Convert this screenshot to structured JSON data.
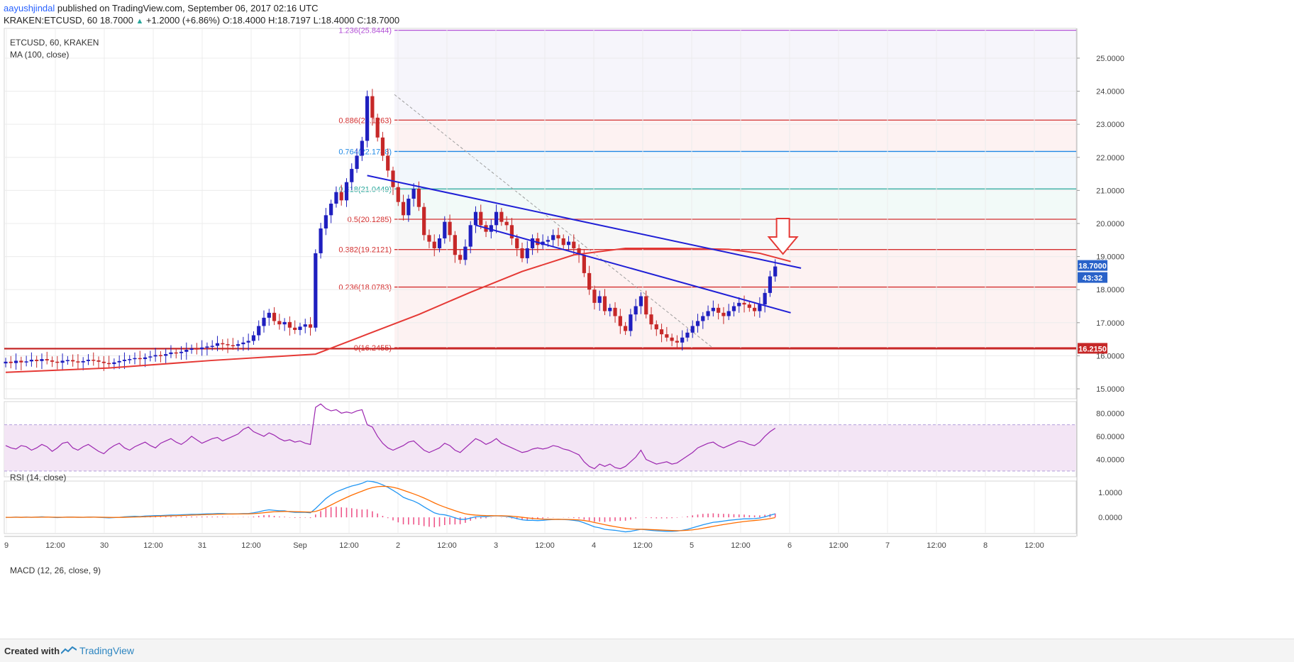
{
  "header": {
    "author": "aayushjindal",
    "published_text": "published on TradingView.com, September 06, 2017 02:16 UTC",
    "symbol_line": "KRAKEN:ETCUSD, 60",
    "last": "18.7000",
    "change": "+1.2000 (+6.86%)",
    "o_label": "O:",
    "o": "18.4000",
    "h_label": "H:",
    "h": "18.7197",
    "l_label": "L:",
    "l": "18.4000",
    "c_label": "C:",
    "c": "18.7000"
  },
  "footer": {
    "created_with": "Created with",
    "brand": "TradingView"
  },
  "colors": {
    "bull": "#1f1fbf",
    "bear": "#c62828",
    "ma": "#e53935",
    "trend": "#1f1fd6",
    "rsi": "#9c27b0",
    "macd": "#2196f3",
    "signal": "#ff6d00",
    "fib_red": "#d32f2f",
    "fib_blue": "#1e88e5",
    "fib_teal": "#26a69a",
    "fib_purple": "#b24fd6",
    "support": "#c62828"
  },
  "chart_data": {
    "type": "candlestick",
    "title": "ETCUSD, 60, KRAKEN",
    "indicator_label": "MA (100, close)",
    "price_axis_ticks": [
      "25.0000",
      "24.0000",
      "23.0000",
      "22.0000",
      "21.0000",
      "20.0000",
      "19.0000",
      "18.0000",
      "17.0000",
      "16.0000",
      "15.0000"
    ],
    "price_range": [
      14.7,
      25.9
    ],
    "last_price_label": "18.7000",
    "countdown_label": "43:32",
    "support_label": "16.2150",
    "support_level": 16.215,
    "time_axis_labels": [
      "9",
      "12:00",
      "30",
      "12:00",
      "31",
      "12:00",
      "Sep",
      "12:00",
      "2",
      "12:00",
      "3",
      "12:00",
      "4",
      "12:00",
      "5",
      "12:00",
      "6",
      "12:00",
      "7",
      "12:00",
      "8",
      "12:00"
    ],
    "fib_levels": [
      {
        "label": "1.236(25.8444)",
        "price": 25.8444,
        "color": "fib_purple"
      },
      {
        "label": "0.886(23.1263)",
        "price": 23.1263,
        "color": "fib_red"
      },
      {
        "label": "0.764(22.1788)",
        "price": 22.1788,
        "color": "fib_blue"
      },
      {
        "label": "0.618(21.0449)",
        "price": 21.0449,
        "color": "fib_teal"
      },
      {
        "label": "0.5(20.1285)",
        "price": 20.1285,
        "color": "fib_red"
      },
      {
        "label": "0.382(19.2121)",
        "price": 19.2121,
        "color": "fib_red"
      },
      {
        "label": "0.236(18.0783)",
        "price": 18.0783,
        "color": "fib_red"
      },
      {
        "label": "0(16.2455)",
        "price": 16.2455,
        "color": "fib_red"
      }
    ],
    "trendlines": [
      {
        "from": {
          "bar": 70,
          "price": 21.45
        },
        "to": {
          "bar": 154,
          "price": 18.65
        }
      },
      {
        "from": {
          "bar": 91,
          "price": 19.95
        },
        "to": {
          "bar": 152,
          "price": 17.3
        }
      }
    ],
    "close_prices": [
      15.82,
      15.78,
      15.85,
      15.8,
      15.83,
      15.88,
      15.84,
      15.9,
      15.86,
      15.82,
      15.79,
      15.85,
      15.87,
      15.83,
      15.8,
      15.84,
      15.88,
      15.86,
      15.82,
      15.78,
      15.75,
      15.8,
      15.84,
      15.88,
      15.9,
      15.93,
      15.9,
      15.95,
      15.98,
      16.02,
      16.0,
      16.05,
      16.1,
      16.08,
      16.12,
      16.18,
      16.22,
      16.2,
      16.25,
      16.28,
      16.3,
      16.38,
      16.35,
      16.32,
      16.3,
      16.35,
      16.4,
      16.45,
      16.62,
      16.9,
      17.15,
      17.3,
      17.05,
      16.95,
      17.02,
      16.85,
      16.78,
      16.88,
      16.95,
      16.85,
      19.1,
      19.85,
      20.25,
      20.6,
      20.95,
      20.7,
      21.25,
      21.65,
      22.05,
      22.5,
      23.85,
      23.2,
      22.6,
      22.05,
      21.6,
      21.1,
      20.65,
      20.25,
      20.75,
      21.05,
      20.5,
      19.65,
      19.45,
      19.25,
      19.55,
      20.05,
      19.65,
      19.05,
      18.9,
      19.3,
      19.95,
      20.35,
      19.95,
      19.75,
      19.95,
      20.35,
      20.05,
      19.95,
      19.55,
      19.25,
      18.95,
      19.25,
      19.55,
      19.35,
      19.45,
      19.5,
      19.65,
      19.55,
      19.35,
      19.45,
      19.25,
      19.05,
      18.5,
      18.0,
      17.6,
      17.8,
      17.35,
      17.45,
      17.2,
      16.9,
      16.75,
      17.25,
      17.5,
      17.8,
      17.25,
      16.95,
      16.8,
      16.65,
      16.55,
      16.45,
      16.4,
      16.55,
      16.7,
      16.9,
      17.05,
      17.2,
      17.35,
      17.45,
      17.3,
      17.2,
      17.35,
      17.5,
      17.6,
      17.55,
      17.45,
      17.35,
      17.55,
      17.9,
      18.4,
      18.7
    ],
    "ma_100": [
      {
        "bar": 0,
        "price": 15.5
      },
      {
        "bar": 20,
        "price": 15.63
      },
      {
        "bar": 40,
        "price": 15.86
      },
      {
        "bar": 60,
        "price": 16.05
      },
      {
        "bar": 70,
        "price": 16.65
      },
      {
        "bar": 80,
        "price": 17.25
      },
      {
        "bar": 90,
        "price": 17.92
      },
      {
        "bar": 100,
        "price": 18.55
      },
      {
        "bar": 110,
        "price": 19.05
      },
      {
        "bar": 120,
        "price": 19.25
      },
      {
        "bar": 130,
        "price": 19.25
      },
      {
        "bar": 140,
        "price": 19.22
      },
      {
        "bar": 146,
        "price": 19.1
      },
      {
        "bar": 152,
        "price": 18.85
      }
    ],
    "rsi": {
      "label": "RSI (14, close)",
      "ticks": [
        "80.0000",
        "60.0000",
        "40.0000"
      ],
      "range": [
        25,
        90
      ],
      "band": [
        30,
        70
      ],
      "values": [
        52,
        50,
        49,
        52,
        51,
        48,
        50,
        53,
        51,
        47,
        50,
        54,
        55,
        50,
        48,
        51,
        53,
        50,
        47,
        45,
        49,
        52,
        54,
        50,
        48,
        51,
        53,
        55,
        52,
        50,
        54,
        56,
        58,
        55,
        53,
        56,
        60,
        57,
        54,
        56,
        58,
        59,
        56,
        58,
        60,
        62,
        66,
        68,
        64,
        62,
        60,
        63,
        61,
        58,
        56,
        57,
        55,
        56,
        54,
        53,
        85,
        88,
        84,
        82,
        83,
        80,
        81,
        80,
        82,
        83,
        70,
        68,
        60,
        54,
        50,
        48,
        50,
        52,
        55,
        56,
        52,
        48,
        46,
        48,
        50,
        54,
        52,
        48,
        46,
        50,
        54,
        58,
        56,
        53,
        55,
        58,
        54,
        52,
        50,
        48,
        46,
        47,
        49,
        50,
        49,
        50,
        52,
        51,
        49,
        48,
        46,
        44,
        38,
        34,
        32,
        36,
        34,
        36,
        33,
        32,
        34,
        38,
        42,
        48,
        40,
        38,
        36,
        37,
        38,
        36,
        37,
        40,
        43,
        46,
        50,
        52,
        54,
        55,
        52,
        50,
        52,
        54,
        56,
        55,
        53,
        52,
        55,
        60,
        64,
        67
      ]
    },
    "macd": {
      "label": "MACD (12, 26, close, 9)",
      "ticks": [
        "1.0000",
        "0.0000"
      ],
      "range": [
        -0.65,
        1.45
      ],
      "macd_line": [
        0,
        0,
        0.01,
        0,
        0.01,
        0,
        0.01,
        0.02,
        0.01,
        0,
        -0.01,
        0,
        0.01,
        0.01,
        0,
        0,
        0.01,
        0.01,
        0,
        -0.01,
        -0.02,
        -0.01,
        0,
        0.02,
        0.03,
        0.04,
        0.03,
        0.05,
        0.06,
        0.07,
        0.07,
        0.08,
        0.09,
        0.09,
        0.1,
        0.11,
        0.12,
        0.12,
        0.13,
        0.14,
        0.14,
        0.15,
        0.15,
        0.14,
        0.14,
        0.14,
        0.15,
        0.15,
        0.18,
        0.22,
        0.27,
        0.3,
        0.28,
        0.26,
        0.26,
        0.22,
        0.2,
        0.2,
        0.2,
        0.18,
        0.35,
        0.55,
        0.75,
        0.9,
        1.02,
        1.1,
        1.18,
        1.25,
        1.3,
        1.36,
        1.45,
        1.43,
        1.38,
        1.3,
        1.2,
        1.08,
        0.95,
        0.8,
        0.72,
        0.65,
        0.55,
        0.42,
        0.3,
        0.18,
        0.12,
        0.1,
        0.05,
        -0.02,
        -0.08,
        -0.08,
        -0.03,
        0.02,
        0.03,
        0.03,
        0.05,
        0.06,
        0.05,
        0.04,
        0,
        -0.05,
        -0.1,
        -0.12,
        -0.12,
        -0.13,
        -0.12,
        -0.1,
        -0.09,
        -0.08,
        -0.09,
        -0.1,
        -0.12,
        -0.15,
        -0.22,
        -0.3,
        -0.38,
        -0.42,
        -0.48,
        -0.5,
        -0.52,
        -0.55,
        -0.58,
        -0.56,
        -0.52,
        -0.48,
        -0.5,
        -0.52,
        -0.54,
        -0.55,
        -0.56,
        -0.56,
        -0.55,
        -0.52,
        -0.48,
        -0.42,
        -0.36,
        -0.3,
        -0.25,
        -0.2,
        -0.18,
        -0.15,
        -0.12,
        -0.1,
        -0.08,
        -0.06,
        -0.06,
        -0.05,
        -0.03,
        0.02,
        0.08,
        0.14
      ]
    }
  }
}
